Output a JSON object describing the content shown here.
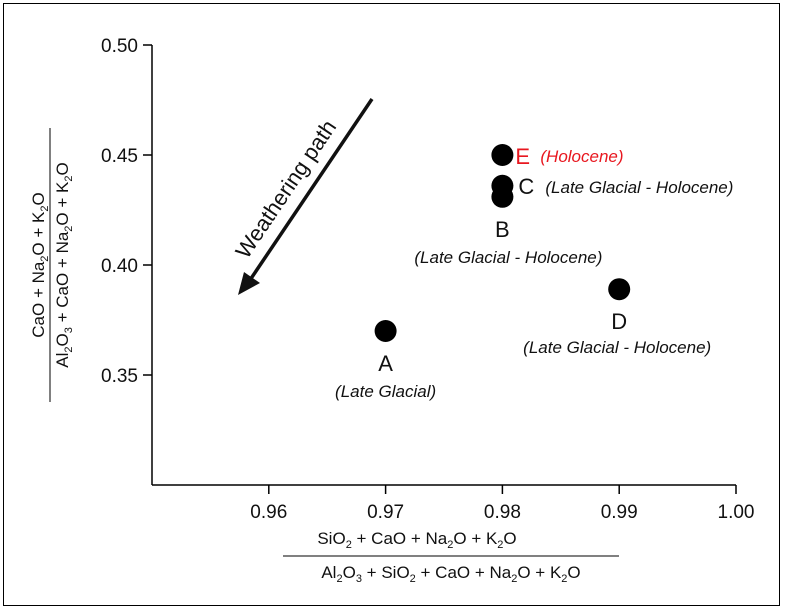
{
  "chart_data": {
    "type": "scatter",
    "xlim": [
      0.95,
      1.0
    ],
    "ylim": [
      0.3,
      0.5
    ],
    "x_ticks": [
      "0.96",
      "0.97",
      "0.98",
      "0.99",
      "1.00"
    ],
    "y_ticks": [
      "0.35",
      "0.40",
      "0.45",
      "0.50"
    ],
    "xlabel": {
      "numerator": "SiO2 + CaO + Na2O + K2O",
      "denominator": "Al2O3 + SiO2 + CaO + Na2O + K2O"
    },
    "ylabel": {
      "numerator": "CaO + Na2O + K2O",
      "denominator": "Al2O3 + CaO + Na2O + K2O"
    },
    "points": [
      {
        "label": "A",
        "period": "(Late Glacial)",
        "x": 0.97,
        "y": 0.37,
        "color": "#000000"
      },
      {
        "label": "B",
        "period": "(Late Glacial - Holocene)",
        "x": 0.98,
        "y": 0.431,
        "color": "#000000"
      },
      {
        "label": "C",
        "period": "(Late Glacial - Holocene)",
        "x": 0.98,
        "y": 0.436,
        "color": "#000000"
      },
      {
        "label": "D",
        "period": "(Late Glacial - Holocene)",
        "x": 0.99,
        "y": 0.389,
        "color": "#000000"
      },
      {
        "label": "E",
        "period": "(Holocene)",
        "x": 0.98,
        "y": 0.45,
        "color": "#000000",
        "label_color": "#e8171f"
      }
    ],
    "annotation": {
      "text": "Weathering path",
      "arrow_direction": "down-left"
    }
  }
}
